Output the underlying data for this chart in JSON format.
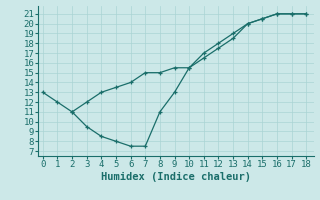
{
  "xlabel": "Humidex (Indice chaleur)",
  "background_color": "#cce8e8",
  "line_color": "#1a6e6a",
  "xlim": [
    -0.3,
    18.5
  ],
  "ylim": [
    6.5,
    21.8
  ],
  "yticks": [
    7,
    8,
    9,
    10,
    11,
    12,
    13,
    14,
    15,
    16,
    17,
    18,
    19,
    20,
    21
  ],
  "xticks": [
    0,
    1,
    2,
    3,
    4,
    5,
    6,
    7,
    8,
    9,
    10,
    11,
    12,
    13,
    14,
    15,
    16,
    17,
    18
  ],
  "line1_x": [
    0,
    1,
    2,
    3,
    4,
    5,
    6,
    7,
    8,
    9,
    10,
    11,
    12,
    13,
    14,
    15,
    16,
    17,
    18
  ],
  "line1_y": [
    13,
    12,
    11,
    12,
    13,
    13.5,
    14,
    15,
    15,
    15.5,
    15.5,
    17,
    18,
    19,
    20,
    20.5,
    21,
    21,
    21
  ],
  "line2_x": [
    2,
    3,
    4,
    5,
    6,
    7,
    8,
    9,
    10,
    11,
    12,
    13,
    14,
    15,
    16,
    17,
    18
  ],
  "line2_y": [
    11,
    9.5,
    8.5,
    8,
    7.5,
    7.5,
    11,
    13,
    15.5,
    16.5,
    17.5,
    18.5,
    20,
    20.5,
    21,
    21,
    21
  ],
  "grid_color": "#aad4d4",
  "tick_fontsize": 6.5,
  "label_fontsize": 7.5,
  "marker": "+"
}
